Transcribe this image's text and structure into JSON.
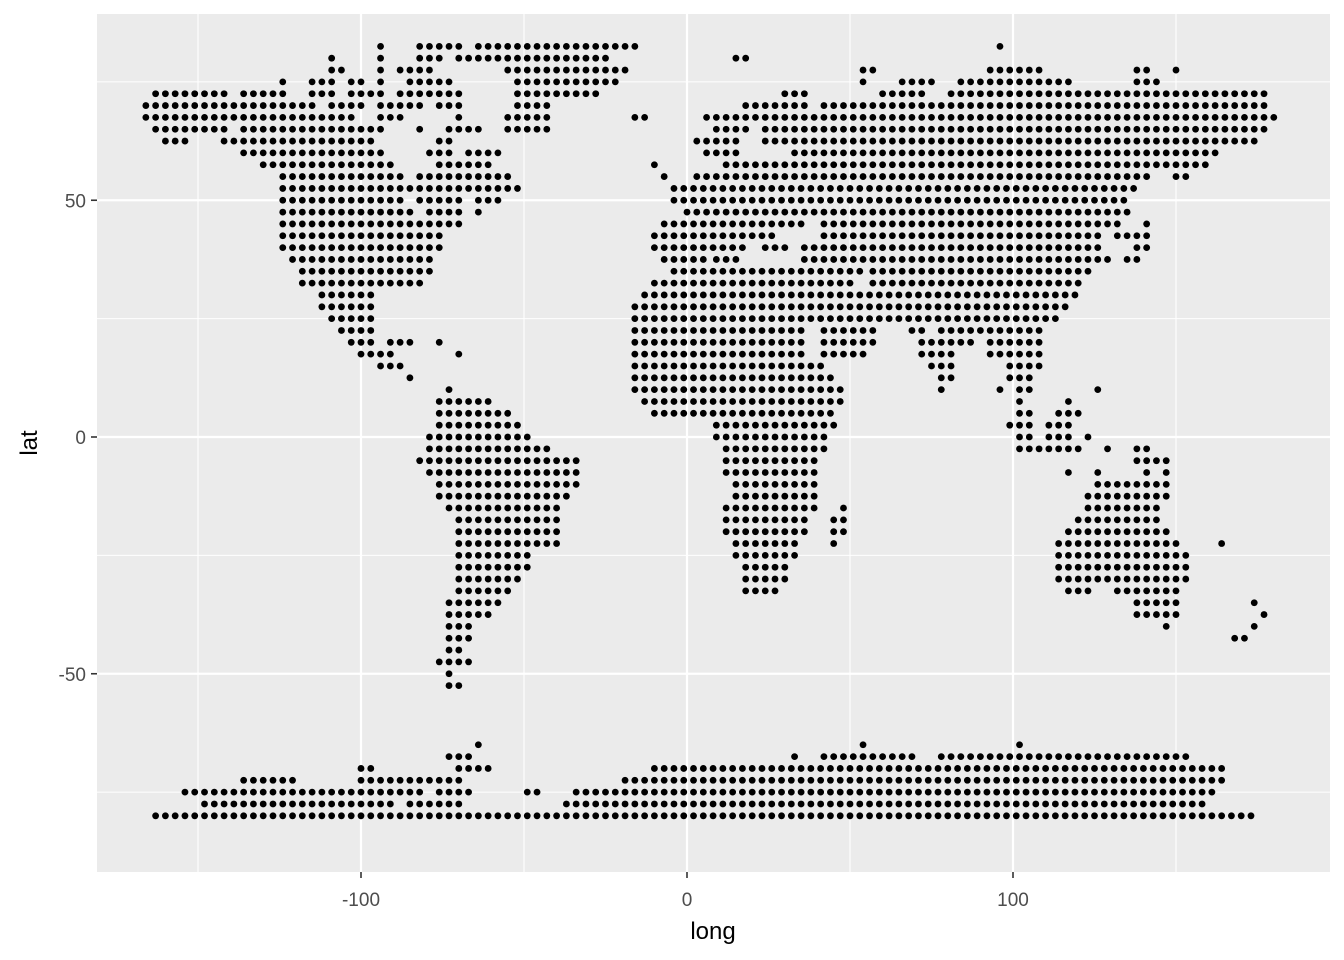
{
  "chart_data": {
    "type": "scatter",
    "title": "",
    "xlabel": "long",
    "ylabel": "lat",
    "xlim": [
      -180,
      180
    ],
    "ylim": [
      -92,
      90
    ],
    "grid": true,
    "x_ticks": [
      {
        "value": -100,
        "label": "-100"
      },
      {
        "value": 0,
        "label": "0"
      },
      {
        "value": 100,
        "label": "100"
      }
    ],
    "y_ticks": [
      {
        "value": 50,
        "label": "50"
      },
      {
        "value": 0,
        "label": "0"
      },
      {
        "value": -50,
        "label": "-50"
      }
    ],
    "x_minor": [
      -150,
      -50,
      50,
      150
    ],
    "y_minor": [
      75,
      25,
      -25,
      -75
    ],
    "point_color": "#000000",
    "panel_color": "#ebebeb",
    "grid_color": "#ffffff",
    "grid_spacing": {
      "long": 3,
      "lat": 2.5
    },
    "land_rows": [
      {
        "lat": 82.5,
        "ranges": [
          [
            -94,
            -94
          ],
          [
            -82,
            -70
          ],
          [
            -64,
            -16
          ],
          [
            96,
            96
          ]
        ]
      },
      {
        "lat": 80,
        "ranges": [
          [
            -109,
            -109
          ],
          [
            -94,
            -94
          ],
          [
            -82,
            -76
          ],
          [
            -70,
            -25
          ],
          [
            15,
            18
          ]
        ]
      },
      {
        "lat": 77.5,
        "ranges": [
          [
            -109,
            -106
          ],
          [
            -94,
            -94
          ],
          [
            -88,
            -79
          ],
          [
            -55,
            -19
          ],
          [
            54,
            57
          ],
          [
            93,
            110
          ],
          [
            138,
            141
          ],
          [
            150,
            150
          ]
        ]
      },
      {
        "lat": 75,
        "ranges": [
          [
            -124,
            -124
          ],
          [
            -115,
            -109
          ],
          [
            -103,
            -100
          ],
          [
            -94,
            -94
          ],
          [
            -85,
            -73
          ],
          [
            -52,
            -22
          ],
          [
            54,
            54
          ],
          [
            66,
            75
          ],
          [
            84,
            117
          ],
          [
            138,
            144
          ]
        ]
      },
      {
        "lat": 72.5,
        "ranges": [
          [
            -163,
            -142
          ],
          [
            -136,
            -124
          ],
          [
            -115,
            -109
          ],
          [
            -103,
            -94
          ],
          [
            -88,
            -70
          ],
          [
            -52,
            -28
          ],
          [
            30,
            36
          ],
          [
            60,
            72
          ],
          [
            81,
            177
          ]
        ]
      },
      {
        "lat": 70,
        "ranges": [
          [
            -166,
            -115
          ],
          [
            -109,
            -100
          ],
          [
            -94,
            -82
          ],
          [
            -76,
            -70
          ],
          [
            -52,
            -43
          ],
          [
            18,
            36
          ],
          [
            42,
            177
          ]
        ]
      },
      {
        "lat": 67.5,
        "ranges": [
          [
            -166,
            -115
          ],
          [
            -112,
            -103
          ],
          [
            -94,
            -88
          ],
          [
            -70,
            -70
          ],
          [
            -55,
            -43
          ],
          [
            -16,
            -13
          ],
          [
            6,
            180
          ]
        ]
      },
      {
        "lat": 65,
        "ranges": [
          [
            -163,
            -142
          ],
          [
            -136,
            -94
          ],
          [
            -82,
            -82
          ],
          [
            -73,
            -64
          ],
          [
            -55,
            -43
          ],
          [
            9,
            18
          ],
          [
            24,
            177
          ]
        ]
      },
      {
        "lat": 62.5,
        "ranges": [
          [
            -160,
            -154
          ],
          [
            -142,
            -97
          ],
          [
            -76,
            -73
          ],
          [
            3,
            15
          ],
          [
            24,
            174
          ]
        ]
      },
      {
        "lat": 60,
        "ranges": [
          [
            -136,
            -94
          ],
          [
            -79,
            -73
          ],
          [
            -67,
            -58
          ],
          [
            6,
            15
          ],
          [
            33,
            162
          ]
        ]
      },
      {
        "lat": 57.5,
        "ranges": [
          [
            -130,
            -91
          ],
          [
            -76,
            -61
          ],
          [
            -10,
            -10
          ],
          [
            12,
            147
          ],
          [
            150,
            153
          ],
          [
            156,
            159
          ]
        ]
      },
      {
        "lat": 55,
        "ranges": [
          [
            -124,
            -88
          ],
          [
            -82,
            -55
          ],
          [
            -7,
            -7
          ],
          [
            3,
            141
          ],
          [
            150,
            153
          ]
        ]
      },
      {
        "lat": 52.5,
        "ranges": [
          [
            -124,
            -82
          ],
          [
            -79,
            -52
          ],
          [
            -4,
            138
          ]
        ]
      },
      {
        "lat": 50,
        "ranges": [
          [
            -124,
            -88
          ],
          [
            -82,
            -70
          ],
          [
            -64,
            -58
          ],
          [
            -4,
            135
          ]
        ]
      },
      {
        "lat": 47.5,
        "ranges": [
          [
            -124,
            -85
          ],
          [
            -79,
            -70
          ],
          [
            -64,
            -64
          ],
          [
            0,
            135
          ]
        ]
      },
      {
        "lat": 45,
        "ranges": [
          [
            -124,
            -85
          ],
          [
            -82,
            -70
          ],
          [
            -7,
            36
          ],
          [
            42,
            132
          ],
          [
            141,
            141
          ]
        ]
      },
      {
        "lat": 42.5,
        "ranges": [
          [
            -124,
            -76
          ],
          [
            -10,
            27
          ],
          [
            42,
            126
          ],
          [
            132,
            141
          ]
        ]
      },
      {
        "lat": 40,
        "ranges": [
          [
            -124,
            -76
          ],
          [
            -10,
            18
          ],
          [
            24,
            30
          ],
          [
            36,
            126
          ],
          [
            138,
            141
          ]
        ]
      },
      {
        "lat": 37.5,
        "ranges": [
          [
            -121,
            -79
          ],
          [
            -7,
            6
          ],
          [
            9,
            15
          ],
          [
            36,
            129
          ],
          [
            135,
            138
          ]
        ]
      },
      {
        "lat": 35,
        "ranges": [
          [
            -118,
            -79
          ],
          [
            -4,
            54
          ],
          [
            57,
            123
          ]
        ]
      },
      {
        "lat": 32.5,
        "ranges": [
          [
            -118,
            -82
          ],
          [
            -10,
            51
          ],
          [
            57,
            120
          ]
        ]
      },
      {
        "lat": 30,
        "ranges": [
          [
            -112,
            -97
          ],
          [
            -13,
            120
          ]
        ]
      },
      {
        "lat": 27.5,
        "ranges": [
          [
            -112,
            -97
          ],
          [
            -16,
            117
          ]
        ]
      },
      {
        "lat": 25,
        "ranges": [
          [
            -109,
            -97
          ],
          [
            -16,
            114
          ]
        ]
      },
      {
        "lat": 22.5,
        "ranges": [
          [
            -106,
            -97
          ],
          [
            -16,
            36
          ],
          [
            42,
            57
          ],
          [
            69,
            72
          ],
          [
            78,
            90
          ],
          [
            93,
            108
          ]
        ]
      },
      {
        "lat": 20,
        "ranges": [
          [
            -103,
            -97
          ],
          [
            -91,
            -85
          ],
          [
            -76,
            -76
          ],
          [
            -16,
            36
          ],
          [
            42,
            57
          ],
          [
            72,
            87
          ],
          [
            93,
            108
          ]
        ]
      },
      {
        "lat": 17.5,
        "ranges": [
          [
            -100,
            -91
          ],
          [
            -70,
            -70
          ],
          [
            -16,
            36
          ],
          [
            42,
            54
          ],
          [
            72,
            81
          ],
          [
            93,
            108
          ]
        ]
      },
      {
        "lat": 15,
        "ranges": [
          [
            -94,
            -88
          ],
          [
            -16,
            42
          ],
          [
            75,
            81
          ],
          [
            99,
            108
          ]
        ]
      },
      {
        "lat": 12.5,
        "ranges": [
          [
            -85,
            -85
          ],
          [
            -16,
            45
          ],
          [
            78,
            81
          ],
          [
            99,
            105
          ]
        ]
      },
      {
        "lat": 10,
        "ranges": [
          [
            -73,
            -73
          ],
          [
            -16,
            48
          ],
          [
            78,
            78
          ],
          [
            96,
            96
          ],
          [
            102,
            105
          ],
          [
            126,
            126
          ]
        ]
      },
      {
        "lat": 7.5,
        "ranges": [
          [
            -76,
            -61
          ],
          [
            -13,
            48
          ],
          [
            102,
            102
          ],
          [
            117,
            117
          ]
        ]
      },
      {
        "lat": 5,
        "ranges": [
          [
            -76,
            -55
          ],
          [
            -10,
            45
          ],
          [
            102,
            105
          ],
          [
            114,
            120
          ]
        ]
      },
      {
        "lat": 2.5,
        "ranges": [
          [
            -76,
            -52
          ],
          [
            9,
            45
          ],
          [
            99,
            105
          ],
          [
            111,
            117
          ]
        ]
      },
      {
        "lat": 0,
        "ranges": [
          [
            -79,
            -49
          ],
          [
            9,
            42
          ],
          [
            102,
            105
          ],
          [
            111,
            117
          ],
          [
            123,
            123
          ]
        ]
      },
      {
        "lat": -2.5,
        "ranges": [
          [
            -79,
            -43
          ],
          [
            12,
            42
          ],
          [
            102,
            117
          ],
          [
            120,
            120
          ],
          [
            129,
            129
          ],
          [
            138,
            141
          ]
        ]
      },
      {
        "lat": -5,
        "ranges": [
          [
            -82,
            -34
          ],
          [
            12,
            39
          ],
          [
            138,
            147
          ]
        ]
      },
      {
        "lat": -7.5,
        "ranges": [
          [
            -79,
            -34
          ],
          [
            12,
            39
          ],
          [
            117,
            117
          ],
          [
            126,
            126
          ],
          [
            141,
            141
          ],
          [
            147,
            147
          ]
        ]
      },
      {
        "lat": -10,
        "ranges": [
          [
            -76,
            -34
          ],
          [
            15,
            39
          ],
          [
            126,
            147
          ]
        ]
      },
      {
        "lat": -12.5,
        "ranges": [
          [
            -76,
            -37
          ],
          [
            15,
            39
          ],
          [
            123,
            147
          ]
        ]
      },
      {
        "lat": -15,
        "ranges": [
          [
            -73,
            -40
          ],
          [
            12,
            39
          ],
          [
            48,
            48
          ],
          [
            123,
            144
          ]
        ]
      },
      {
        "lat": -17.5,
        "ranges": [
          [
            -70,
            -40
          ],
          [
            12,
            36
          ],
          [
            45,
            48
          ],
          [
            120,
            144
          ]
        ]
      },
      {
        "lat": -20,
        "ranges": [
          [
            -70,
            -40
          ],
          [
            12,
            36
          ],
          [
            45,
            48
          ],
          [
            117,
            147
          ]
        ]
      },
      {
        "lat": -22.5,
        "ranges": [
          [
            -70,
            -40
          ],
          [
            15,
            33
          ],
          [
            45,
            45
          ],
          [
            114,
            150
          ],
          [
            164,
            164
          ]
        ]
      },
      {
        "lat": -25,
        "ranges": [
          [
            -70,
            -49
          ],
          [
            15,
            33
          ],
          [
            114,
            153
          ]
        ]
      },
      {
        "lat": -27.5,
        "ranges": [
          [
            -70,
            -49
          ],
          [
            18,
            30
          ],
          [
            114,
            153
          ]
        ]
      },
      {
        "lat": -30,
        "ranges": [
          [
            -70,
            -52
          ],
          [
            18,
            30
          ],
          [
            114,
            153
          ]
        ]
      },
      {
        "lat": -32.5,
        "ranges": [
          [
            -70,
            -55
          ],
          [
            18,
            27
          ],
          [
            117,
            123
          ],
          [
            132,
            150
          ]
        ]
      },
      {
        "lat": -35,
        "ranges": [
          [
            -73,
            -58
          ],
          [
            138,
            150
          ],
          [
            174,
            174
          ]
        ]
      },
      {
        "lat": -37.5,
        "ranges": [
          [
            -73,
            -61
          ],
          [
            138,
            150
          ],
          [
            177,
            177
          ]
        ]
      },
      {
        "lat": -40,
        "ranges": [
          [
            -73,
            -67
          ],
          [
            147,
            147
          ],
          [
            174,
            174
          ]
        ]
      },
      {
        "lat": -42.5,
        "ranges": [
          [
            -73,
            -67
          ],
          [
            168,
            171
          ]
        ]
      },
      {
        "lat": -45,
        "ranges": [
          [
            -73,
            -70
          ]
        ]
      },
      {
        "lat": -47.5,
        "ranges": [
          [
            -76,
            -67
          ]
        ]
      },
      {
        "lat": -50,
        "ranges": [
          [
            -73,
            -73
          ]
        ]
      },
      {
        "lat": -52.5,
        "ranges": [
          [
            -73,
            -70
          ]
        ]
      },
      {
        "lat": -65,
        "ranges": [
          [
            -64,
            -64
          ],
          [
            54,
            54
          ],
          [
            102,
            102
          ]
        ]
      },
      {
        "lat": -67.5,
        "ranges": [
          [
            -73,
            -67
          ],
          [
            33,
            33
          ],
          [
            42,
            69
          ],
          [
            78,
            153
          ]
        ]
      },
      {
        "lat": -70,
        "ranges": [
          [
            -100,
            -97
          ],
          [
            -70,
            -61
          ],
          [
            -10,
            165
          ]
        ]
      },
      {
        "lat": -72.5,
        "ranges": [
          [
            -136,
            -121
          ],
          [
            -100,
            -70
          ],
          [
            -19,
            165
          ]
        ]
      },
      {
        "lat": -75,
        "ranges": [
          [
            -154,
            -82
          ],
          [
            -76,
            -67
          ],
          [
            -49,
            -46
          ],
          [
            -34,
            162
          ]
        ]
      },
      {
        "lat": -77.5,
        "ranges": [
          [
            -148,
            -91
          ],
          [
            -85,
            -70
          ],
          [
            -37,
            159
          ]
        ]
      },
      {
        "lat": -80,
        "ranges": [
          [
            -163,
            174
          ]
        ]
      }
    ]
  }
}
